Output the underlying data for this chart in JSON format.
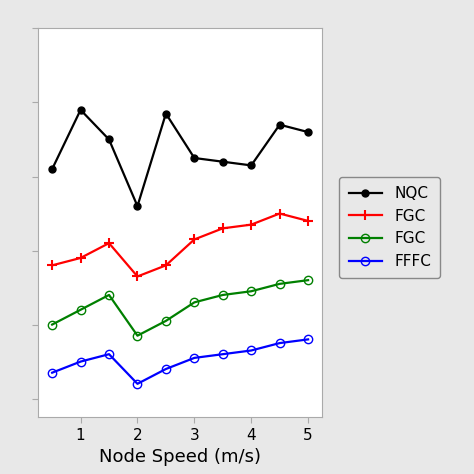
{
  "title": "",
  "xlabel": "Node Speed (m/s)",
  "ylabel": "",
  "x_ticks": [
    1,
    2,
    3,
    4,
    5
  ],
  "series": [
    {
      "label": "NQC",
      "color": "black",
      "marker": "o",
      "marker_filled": true,
      "x": [
        0.5,
        1.0,
        1.5,
        2.0,
        2.5,
        3.0,
        3.5,
        4.0,
        4.5,
        5.0
      ],
      "y": [
        0.62,
        0.78,
        0.7,
        0.52,
        0.77,
        0.65,
        0.64,
        0.63,
        0.74,
        0.72
      ]
    },
    {
      "label": "FGC",
      "color": "red",
      "marker": "P",
      "marker_filled": true,
      "x": [
        0.5,
        1.0,
        1.5,
        2.0,
        2.5,
        3.0,
        3.5,
        4.0,
        4.5,
        5.0
      ],
      "y": [
        0.36,
        0.38,
        0.42,
        0.33,
        0.36,
        0.43,
        0.46,
        0.47,
        0.5,
        0.48
      ]
    },
    {
      "label": "FGC",
      "color": "green",
      "marker": "o",
      "marker_filled": false,
      "x": [
        0.5,
        1.0,
        1.5,
        2.0,
        2.5,
        3.0,
        3.5,
        4.0,
        4.5,
        5.0
      ],
      "y": [
        0.2,
        0.24,
        0.28,
        0.17,
        0.21,
        0.26,
        0.28,
        0.29,
        0.31,
        0.32
      ]
    },
    {
      "label": "FFFC",
      "color": "blue",
      "marker": "o",
      "marker_filled": false,
      "x": [
        0.5,
        1.0,
        1.5,
        2.0,
        2.5,
        3.0,
        3.5,
        4.0,
        4.5,
        5.0
      ],
      "y": [
        0.07,
        0.1,
        0.12,
        0.04,
        0.08,
        0.11,
        0.12,
        0.13,
        0.15,
        0.16
      ]
    }
  ],
  "xlim": [
    0.25,
    5.25
  ],
  "ylim": [
    -0.05,
    1.0
  ],
  "legend_labels": [
    "NQC",
    "FGC",
    "FGC",
    "FFFC"
  ],
  "fig_background": "#e8e8e8",
  "plot_background": "white",
  "spine_color": "#aaaaaa",
  "xlabel_fontsize": 13,
  "tick_labelsize": 11,
  "legend_fontsize": 11,
  "linewidth": 1.6,
  "marker_size_filled": 5,
  "marker_size_open": 6
}
